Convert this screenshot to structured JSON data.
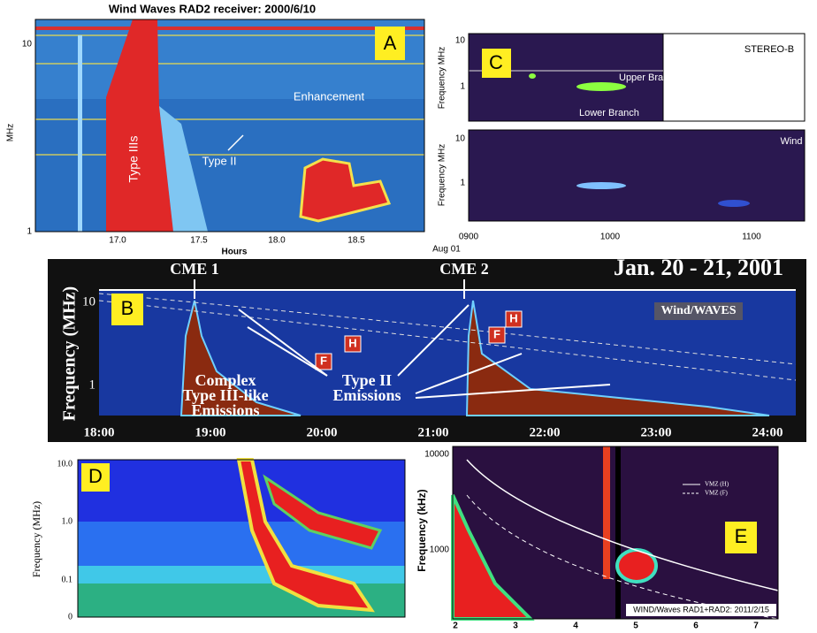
{
  "panel_a": {
    "label": "A",
    "title": "Wind Waves RAD2 receiver: 2000/6/10",
    "y_axis": "MHz",
    "y_ticks": [
      "10",
      "1"
    ],
    "x_axis": "Hours",
    "x_ticks": [
      "17.0",
      "17.5",
      "18.0",
      "18.5"
    ],
    "annotations": [
      "Type IIIs",
      "Type II",
      "Enhancement"
    ]
  },
  "panel_c": {
    "label": "C",
    "top_station": "STEREO-B",
    "bottom_station": "Wind",
    "y_axis": "Frequency MHz",
    "y_ticks": [
      "10",
      "1"
    ],
    "x_ticks": [
      "0900",
      "1000",
      "1100"
    ],
    "x_date": "Aug 01",
    "annotations": [
      "Upper Branch",
      "Lower Branch"
    ]
  },
  "panel_b": {
    "label": "B",
    "title": "Jan. 20 - 21, 2001",
    "instrument": "Wind/WAVES",
    "y_axis": "Frequency (MHz)",
    "y_ticks": [
      "10",
      "1"
    ],
    "x_ticks": [
      "18:00",
      "19:00",
      "20:00",
      "21:00",
      "22:00",
      "23:00",
      "24:00"
    ],
    "events": [
      "CME 1",
      "CME 2"
    ],
    "harmonic": "H",
    "fundamental": "F",
    "annotations": [
      "Complex",
      "Type III-like",
      "Emissions",
      "Type II",
      "Emissions"
    ]
  },
  "panel_d": {
    "label": "D",
    "y_axis": "Frequency (MHz)",
    "y_ticks": [
      "10.0",
      "1.0",
      "0.1",
      "0"
    ]
  },
  "panel_e": {
    "label": "E",
    "y_axis": "Frequency (kHz)",
    "y_ticks": [
      "10000",
      "1000"
    ],
    "x_ticks": [
      "2",
      "3",
      "4",
      "5",
      "6",
      "7"
    ],
    "legend": [
      "VMZ (H)",
      "VMZ (F)"
    ],
    "caption": "WIND/Waves RAD1+RAD2: 2011/2/15"
  }
}
